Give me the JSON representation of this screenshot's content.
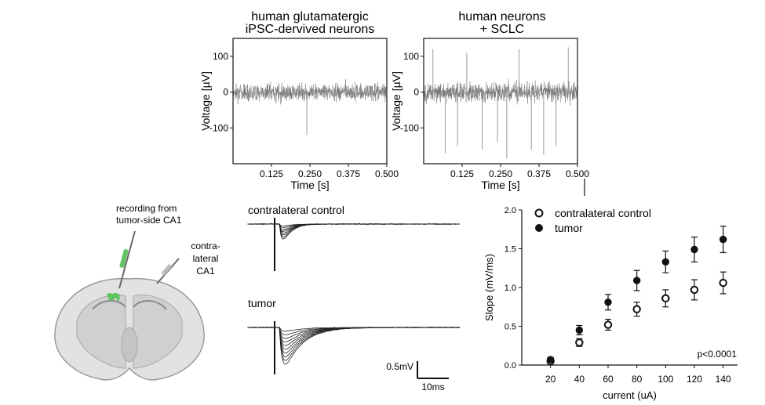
{
  "figure": {
    "panels": {
      "trace_a": {
        "title_line1": "human glutamatergic",
        "title_line2": "iPSC-dervived neurons"
      },
      "trace_b": {
        "title_line1": "human neurons",
        "title_line2": "+ SCLC"
      },
      "brain": {
        "label_recording_1": "recording from",
        "label_recording_2": "tumor-side CA1",
        "label_contra_1": "contra-",
        "label_contra_2": "lateral",
        "label_contra_3": "CA1"
      },
      "evoked": {
        "label_control": "contralateral control",
        "label_tumor": "tumor",
        "scale_voltage": "0.5mV",
        "scale_time": "10ms"
      }
    },
    "colors": {
      "trace_gray": "#6f6f6f",
      "axis": "#111111",
      "brain_fill": "#dcdcdc",
      "brain_stroke": "#9a9a9a",
      "tumor_green": "#5cc45c"
    }
  },
  "chart_data": [
    {
      "type": "line",
      "title": "human glutamatergic iPSC-dervived neurons",
      "xlabel": "Time [s]",
      "ylabel": "Voltage [µV]",
      "xlim": [
        0,
        0.5
      ],
      "ylim": [
        -200,
        150
      ],
      "xticks": [
        0.125,
        0.25,
        0.375,
        0.5
      ],
      "xtick_labels": [
        "0.125",
        "0.250",
        "0.375",
        "0.500"
      ],
      "yticks": [
        100,
        0,
        -100
      ],
      "ytick_labels": [
        "100",
        "0",
        "-100"
      ],
      "noise_band_uV": 40,
      "spikes": [
        {
          "t": 0.24,
          "v": -120
        }
      ]
    },
    {
      "type": "line",
      "title": "human neurons + SCLC",
      "xlabel": "Time [s]",
      "ylabel": "Voltage [µV]",
      "xlim": [
        0,
        0.5
      ],
      "ylim": [
        -200,
        150
      ],
      "xticks": [
        0.125,
        0.25,
        0.375,
        0.5
      ],
      "xtick_labels": [
        "0.125",
        "0.250",
        "0.375",
        "0.500"
      ],
      "yticks": [
        100,
        0,
        -100
      ],
      "ytick_labels": [
        "100",
        "0",
        "-100"
      ],
      "noise_band_uV": 45,
      "spikes": [
        {
          "t": 0.03,
          "v": 120
        },
        {
          "t": 0.07,
          "v": -170
        },
        {
          "t": 0.11,
          "v": -150
        },
        {
          "t": 0.14,
          "v": 110
        },
        {
          "t": 0.19,
          "v": -160
        },
        {
          "t": 0.24,
          "v": -140
        },
        {
          "t": 0.27,
          "v": -185
        },
        {
          "t": 0.31,
          "v": 120
        },
        {
          "t": 0.35,
          "v": -160
        },
        {
          "t": 0.39,
          "v": -175
        },
        {
          "t": 0.43,
          "v": -150
        },
        {
          "t": 0.47,
          "v": 125
        }
      ]
    },
    {
      "type": "scatter",
      "title": "",
      "xlabel": "current (uA)",
      "ylabel": "Slope (mV/ms)",
      "xlim": [
        0,
        150
      ],
      "ylim": [
        0,
        2.0
      ],
      "yticks": [
        0.0,
        0.5,
        1.0,
        1.5,
        2.0
      ],
      "ytick_labels": [
        "0.0",
        "0.5",
        "1.0",
        "1.5",
        "2.0"
      ],
      "categories": [
        "20",
        "40",
        "60",
        "80",
        "100",
        "120",
        "140"
      ],
      "series": [
        {
          "name": "contralateral control",
          "marker": "open-circle",
          "values": [
            0.05,
            0.29,
            0.52,
            0.72,
            0.86,
            0.97,
            1.06
          ],
          "errors": [
            0.02,
            0.05,
            0.07,
            0.09,
            0.11,
            0.13,
            0.14
          ]
        },
        {
          "name": "tumor",
          "marker": "filled-circle",
          "values": [
            0.07,
            0.45,
            0.81,
            1.09,
            1.33,
            1.49,
            1.62
          ],
          "errors": [
            0.03,
            0.06,
            0.1,
            0.13,
            0.14,
            0.16,
            0.17
          ]
        }
      ],
      "annotation": "p<0.0001",
      "legend": "top-left"
    }
  ]
}
